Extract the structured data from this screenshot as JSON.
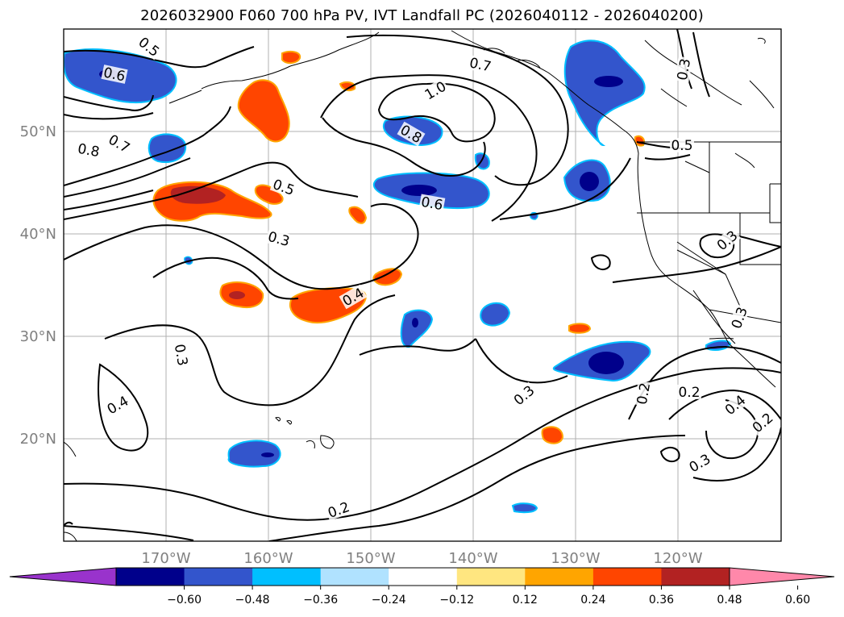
{
  "title": "2026032900 F060 700 hPa PV, IVT Landfall PC (2026040112 - 2026040200)",
  "map": {
    "lon_range": [
      -180,
      -110
    ],
    "lat_range": [
      10,
      60
    ],
    "lon_tick_labels": [
      "170°W",
      "160°W",
      "150°W",
      "140°W",
      "130°W",
      "120°W"
    ],
    "lat_tick_labels": [
      "50°N",
      "40°N",
      "30°N",
      "20°N"
    ],
    "gridlines": true,
    "axis_label_color": "#808080"
  },
  "contour_labels": [
    "0.5",
    "0.6",
    "0.7",
    "0.8",
    "1.0",
    "0.7",
    "0.8",
    "0.3",
    "0.5",
    "0.5",
    "0.6",
    "0.3",
    "0.4",
    "0.3",
    "0.3",
    "0.4",
    "0.3",
    "0.2",
    "0.2",
    "0.4",
    "0.2",
    "0.3",
    "0.3",
    "0.2"
  ],
  "colorbar": {
    "tick_labels": [
      "−0.60",
      "−0.48",
      "−0.36",
      "−0.24",
      "−0.12",
      "0.12",
      "0.24",
      "0.36",
      "0.48",
      "0.60"
    ],
    "colors": [
      "#9933cc",
      "#00008b",
      "#3355cc",
      "#00bfff",
      "#b0e2ff",
      "#ffffff",
      "#ffe680",
      "#ffa500",
      "#ff4500",
      "#b22222",
      "#ff88aa"
    ],
    "extend": "both"
  }
}
